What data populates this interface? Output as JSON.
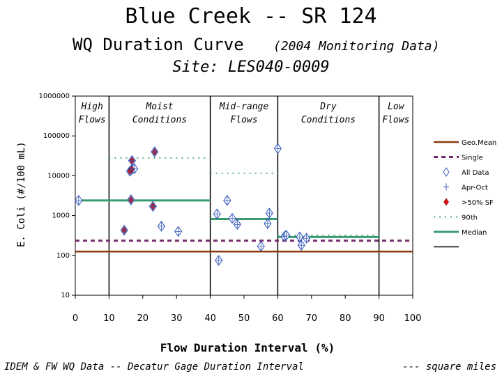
{
  "title": "Blue Creek -- SR 124",
  "subtitle_main": "WQ Duration Curve",
  "subtitle_note": "(2004 Monitoring Data)",
  "site": "Site:  LES040-0009",
  "footer_left": "IDEM & FW WQ Data -- Decatur Gage Duration Interval",
  "footer_right": "--- square miles",
  "colors": {
    "geomean": "#8b3a0e",
    "single": "#7a2a6e",
    "all_data": "#3355bb",
    "pct50": "#dd1111",
    "p90": "#5aaa90",
    "median": "#3a9a70"
  },
  "chart_data": {
    "type": "scatter",
    "xlabel": "Flow Duration Interval (%)",
    "ylabel": "E. Coli (#/100 mL)",
    "xlim": [
      0,
      100
    ],
    "ylim": [
      10,
      1000000
    ],
    "yscale": "log",
    "x_ticks": [
      "0",
      "10",
      "20",
      "30",
      "40",
      "50",
      "60",
      "70",
      "80",
      "90",
      "100"
    ],
    "y_ticks": [
      "1000000",
      "100000",
      "10000",
      "1000",
      "100",
      "10"
    ],
    "y_tick_values": [
      1000000,
      100000,
      10000,
      1000,
      100,
      10
    ],
    "zone_boundaries": [
      10,
      40,
      60,
      90
    ],
    "zones": [
      {
        "label": [
          "High",
          "Flows"
        ],
        "x": 5
      },
      {
        "label": [
          "Moist",
          "Conditions"
        ],
        "x": 25
      },
      {
        "label": [
          "Mid-range",
          "Flows"
        ],
        "x": 50
      },
      {
        "label": [
          "Dry",
          "Conditions"
        ],
        "x": 75
      },
      {
        "label": [
          "Low",
          "Flows"
        ],
        "x": 95
      }
    ],
    "geo_mean": 125,
    "single_sample": 235,
    "p90_segments": [
      {
        "x0": 10,
        "x1": 40,
        "y": 28000
      },
      {
        "x0": 40,
        "x1": 60,
        "y": 11500
      },
      {
        "x0": 60,
        "x1": 90,
        "y": 320
      }
    ],
    "median_segments": [
      {
        "x0": 0,
        "x1": 40,
        "y": 2400
      },
      {
        "x0": 40,
        "x1": 60,
        "y": 820
      },
      {
        "x0": 60,
        "x1": 90,
        "y": 290
      }
    ],
    "all_data": [
      [
        1,
        2400
      ],
      [
        14.5,
        430
      ],
      [
        16.2,
        13000
      ],
      [
        16.8,
        14500
      ],
      [
        17.5,
        15000
      ],
      [
        16.5,
        2500
      ],
      [
        16.8,
        24000
      ],
      [
        23,
        1700
      ],
      [
        23.5,
        40000
      ],
      [
        25.5,
        540
      ],
      [
        30.5,
        400
      ],
      [
        42,
        1100
      ],
      [
        42.5,
        75
      ],
      [
        45,
        2400
      ],
      [
        46.5,
        850
      ],
      [
        48,
        600
      ],
      [
        55,
        170
      ],
      [
        57,
        630
      ],
      [
        57.5,
        1150
      ],
      [
        60,
        48000
      ],
      [
        62,
        300
      ],
      [
        62.5,
        320
      ],
      [
        66.5,
        290
      ],
      [
        67,
        180
      ],
      [
        68.5,
        270
      ]
    ],
    "apr_oct": [
      [
        16.2,
        13000
      ],
      [
        16.8,
        14500
      ],
      [
        17.5,
        15000
      ],
      [
        62,
        300
      ],
      [
        62.5,
        320
      ]
    ],
    "pct50": [
      [
        14.5,
        430
      ],
      [
        16.2,
        13000
      ],
      [
        16.8,
        14500
      ],
      [
        16.5,
        2500
      ],
      [
        16.8,
        24000
      ],
      [
        23,
        1700
      ],
      [
        23.5,
        40000
      ]
    ],
    "legend": [
      {
        "label": "Geo.Mean",
        "type": "geomean"
      },
      {
        "label": "Single",
        "type": "single"
      },
      {
        "label": "All Data",
        "type": "all_data"
      },
      {
        "label": "Apr-Oct",
        "type": "apr_oct"
      },
      {
        "label": ">50% SF",
        "type": "pct50"
      },
      {
        "label": "90th",
        "type": "p90"
      },
      {
        "label": "Median",
        "type": "median"
      },
      {
        "label": "",
        "type": "blank"
      }
    ],
    "legend_position": "right"
  }
}
